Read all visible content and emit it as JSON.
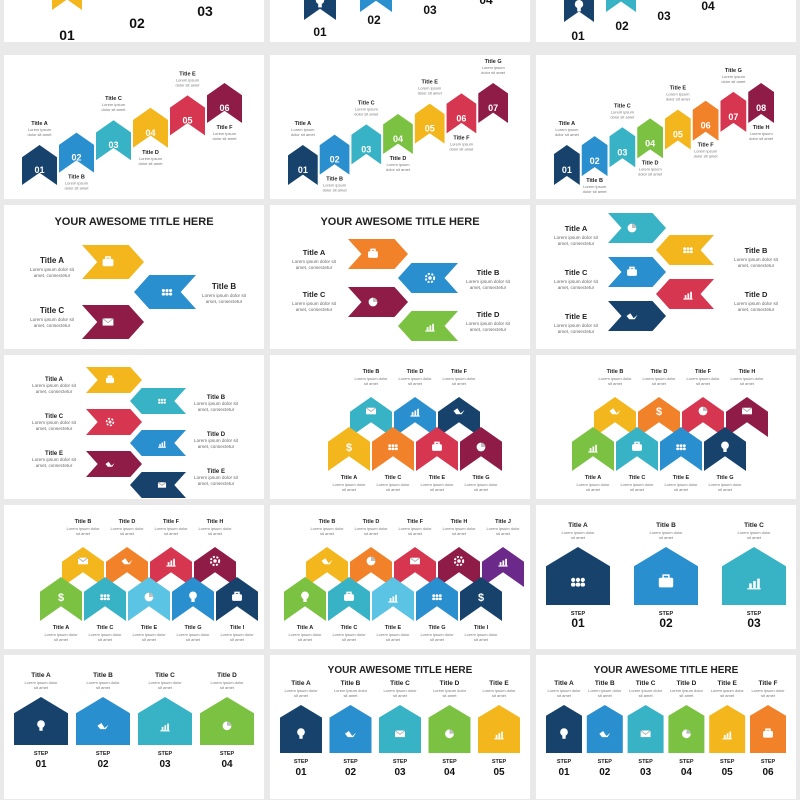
{
  "heading": "YOUR AWESOME TITLE HERE",
  "lorem": "Lorem ipsum dolor sit amet, consectetur",
  "step_label": "STEP",
  "numbers": [
    "01",
    "02",
    "03",
    "04",
    "05",
    "06",
    "07",
    "08"
  ],
  "titles": {
    "a": "Title A",
    "b": "Title B",
    "c": "Title C",
    "d": "Title D",
    "e": "Title E",
    "f": "Title F",
    "g": "Title G",
    "h": "Title H",
    "i": "Title I",
    "j": "Title J"
  },
  "colors": {
    "navy": "#16426b",
    "blue": "#2a8fcf",
    "teal": "#38b3c6",
    "green": "#7cc242",
    "yellow": "#f3b71d",
    "orange": "#f2822a",
    "red": "#d6364f",
    "maroon": "#8e1c46",
    "purple": "#6b2a8a",
    "lightblue": "#5bc3e4"
  },
  "icons": [
    "bulb-icon",
    "briefcase-icon",
    "chart-icon",
    "pie-icon",
    "handshake-icon",
    "dollar-icon",
    "team-icon",
    "mail-icon",
    "gear-icon",
    "pie-icon"
  ]
}
